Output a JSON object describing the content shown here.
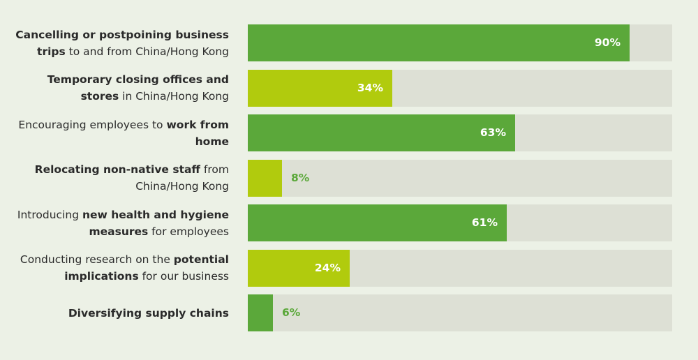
{
  "chart_data": {
    "type": "bar",
    "orientation": "horizontal",
    "xlim": [
      0,
      100
    ],
    "categories": [
      [
        {
          "t": "Cancelling or postpoining business",
          "b": true
        },
        {
          "t": "\n"
        },
        {
          "t": "trips",
          "b": true
        },
        {
          "t": " to and from China/Hong Kong"
        }
      ],
      [
        {
          "t": "Temporary closing offices and",
          "b": true
        },
        {
          "t": "\n"
        },
        {
          "t": "stores",
          "b": true
        },
        {
          "t": " in China/Hong Kong"
        }
      ],
      [
        {
          "t": "Encouraging employees to "
        },
        {
          "t": "work from",
          "b": true
        },
        {
          "t": "\n"
        },
        {
          "t": "home",
          "b": true
        }
      ],
      [
        {
          "t": "Relocating non-native staff",
          "b": true
        },
        {
          "t": " from"
        },
        {
          "t": "\n"
        },
        {
          "t": "China/Hong Kong"
        }
      ],
      [
        {
          "t": "Introducing "
        },
        {
          "t": "new health and hygiene",
          "b": true
        },
        {
          "t": "\n"
        },
        {
          "t": "measures",
          "b": true
        },
        {
          "t": " for employees"
        }
      ],
      [
        {
          "t": "Conducting research on the "
        },
        {
          "t": "potential",
          "b": true
        },
        {
          "t": "\n"
        },
        {
          "t": "implications",
          "b": true
        },
        {
          "t": " for our business"
        }
      ],
      [
        {
          "t": "Diversifying supply chains",
          "b": true
        }
      ]
    ],
    "values": [
      90,
      34,
      63,
      8,
      61,
      24,
      6
    ],
    "value_labels": [
      "90%",
      "34%",
      "63%",
      "8%",
      "61%",
      "24%",
      "6%"
    ],
    "bar_colors": [
      "#5ba83a",
      "#b1cb0d",
      "#5ba83a",
      "#b1cb0d",
      "#5ba83a",
      "#b1cb0d",
      "#5ba83a"
    ],
    "track_color": "#dde0d5",
    "label_inside_color": "#ffffff",
    "label_outside_color": "#5ba83a"
  }
}
